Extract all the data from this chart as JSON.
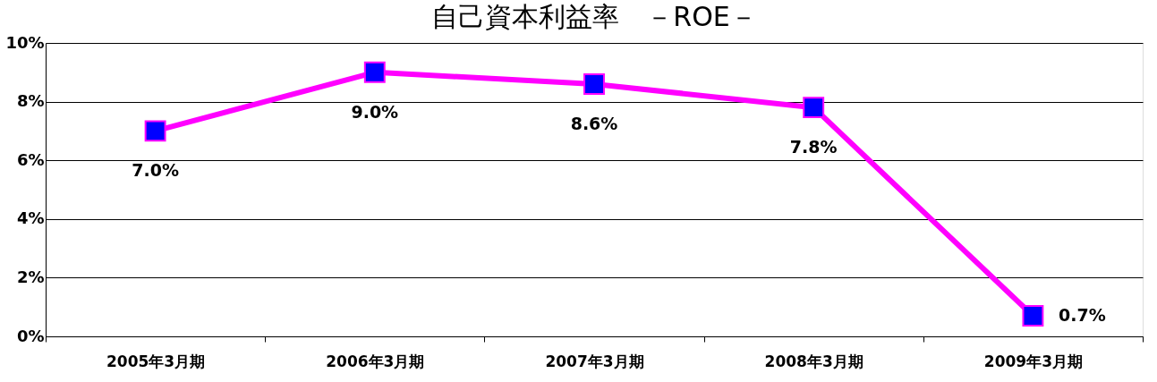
{
  "chart_data": {
    "type": "line",
    "title": "自己資本利益率　－ROE－",
    "categories": [
      "2005年3月期",
      "2006年3月期",
      "2007年3月期",
      "2008年3月期",
      "2009年3月期"
    ],
    "series": [
      {
        "color": "#ff00ff",
        "values": [
          7.0,
          9.0,
          8.6,
          7.8,
          0.7
        ],
        "value_labels": [
          "7.0%",
          "9.0%",
          "8.6%",
          "7.8%",
          "0.7%"
        ]
      }
    ],
    "marker": "square",
    "line_style": "solid",
    "grid": "y",
    "ylim": [
      0,
      10
    ],
    "yticks": [
      {
        "value": 0,
        "label": "0%"
      },
      {
        "value": 2,
        "label": "2%"
      },
      {
        "value": 4,
        "label": "4%"
      },
      {
        "value": 6,
        "label": "6%"
      },
      {
        "value": 8,
        "label": "8%"
      },
      {
        "value": 10,
        "label": "10%"
      }
    ]
  }
}
